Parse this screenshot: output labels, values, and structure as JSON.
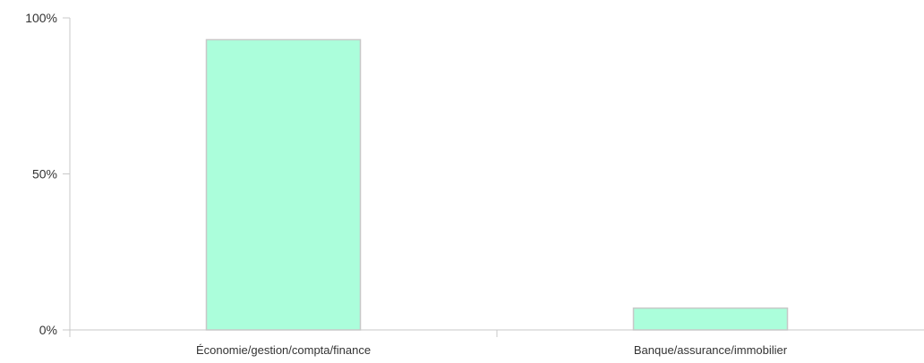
{
  "chart_data": {
    "type": "bar",
    "categories": [
      "Économie/gestion/compta/finance",
      "Banque/assurance/immobilier"
    ],
    "values": [
      93,
      7
    ],
    "ylim": [
      0,
      100
    ],
    "yticks": [
      0,
      50,
      100
    ],
    "ytick_labels": [
      "0%",
      "50%",
      "100%"
    ],
    "grid": false,
    "title": "",
    "xlabel": "",
    "ylabel": "",
    "colors": {
      "bar_fill": "#abfedb",
      "bar_stroke": "#c8c8c8",
      "axis": "#c8c8c8",
      "text": "#333333"
    }
  }
}
